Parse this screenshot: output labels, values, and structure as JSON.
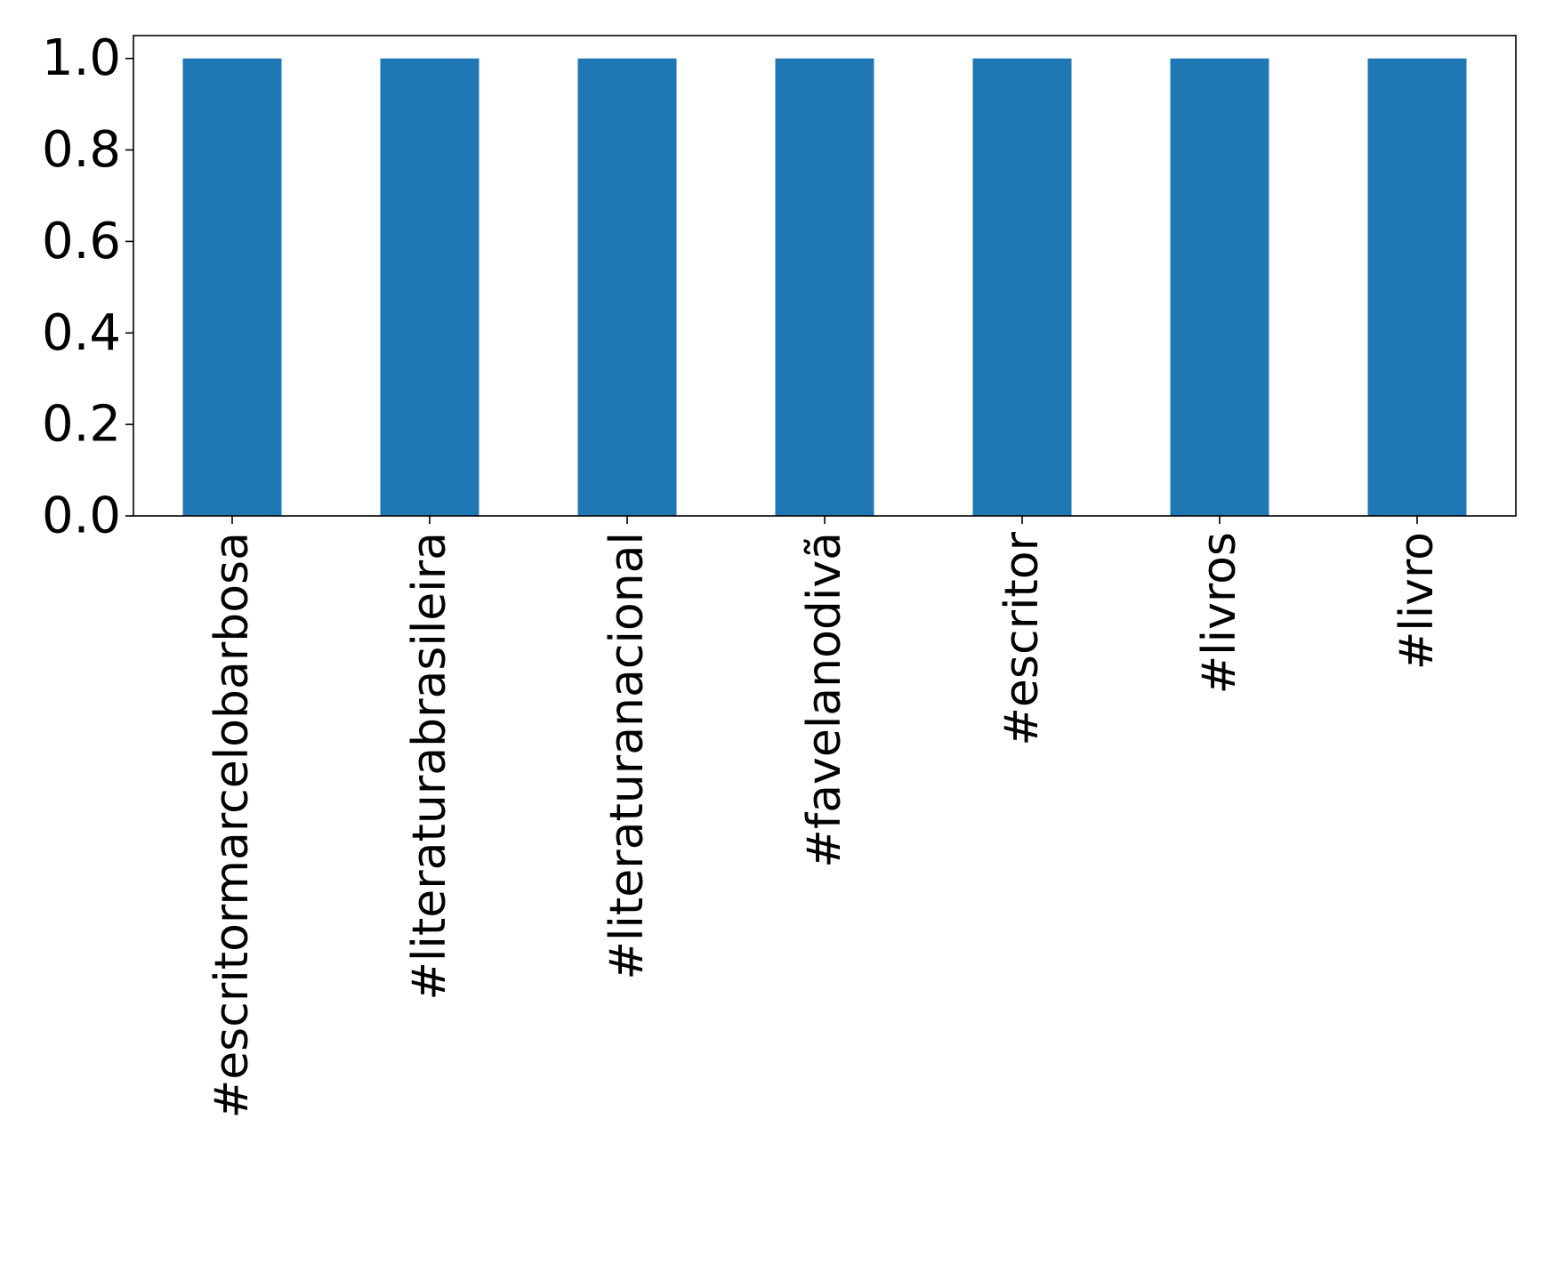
{
  "chart_data": {
    "type": "bar",
    "categories": [
      "#escritormarcelobarbosa",
      "#literaturabrasileira",
      "#literaturanacional",
      "#favelanodivã",
      "#escritor",
      "#livros",
      "#livro"
    ],
    "values": [
      1.0,
      1.0,
      1.0,
      1.0,
      1.0,
      1.0,
      1.0
    ],
    "title": "",
    "xlabel": "",
    "ylabel": "",
    "ylim": [
      0,
      1.05
    ],
    "yticks": [
      "0.0",
      "0.2",
      "0.4",
      "0.6",
      "0.8",
      "1.0"
    ],
    "grid": false,
    "legend": "none",
    "bar_color": "#1f77b4"
  }
}
